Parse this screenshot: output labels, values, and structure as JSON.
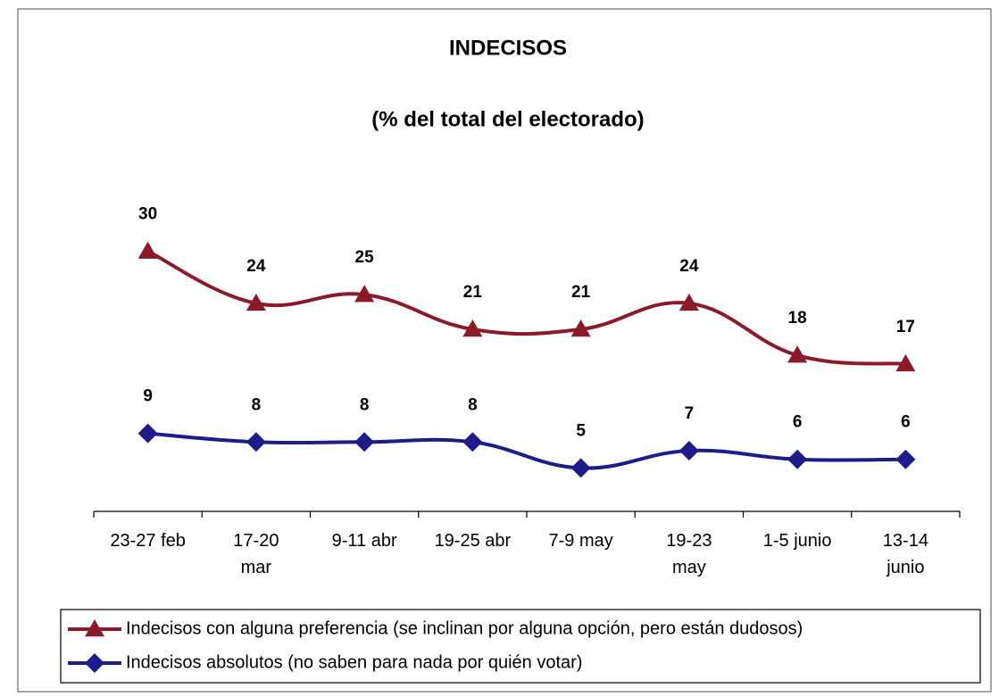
{
  "chart_data": {
    "type": "line",
    "title": "INDECISOS",
    "subtitle": "(% del total del electorado)",
    "categories": [
      "23-27 feb",
      "17-20\nmar",
      "9-11 abr",
      "19-25 abr",
      "7-9 may",
      "19-23\nmay",
      "1-5 junio",
      "13-14\njunio"
    ],
    "series": [
      {
        "name": "Indecisos con alguna preferencia (se inclinan por alguna opción, pero están dudosos)",
        "color": "#8b1a2b",
        "marker": "triangle",
        "values": [
          30,
          24,
          25,
          21,
          21,
          24,
          18,
          17
        ]
      },
      {
        "name": "Indecisos absolutos (no saben para nada por quién votar)",
        "color": "#1c1c8a",
        "marker": "diamond",
        "values": [
          9,
          8,
          8,
          8,
          5,
          7,
          6,
          6
        ]
      }
    ],
    "ylim": [
      0,
      35
    ],
    "legend": "bottom"
  }
}
